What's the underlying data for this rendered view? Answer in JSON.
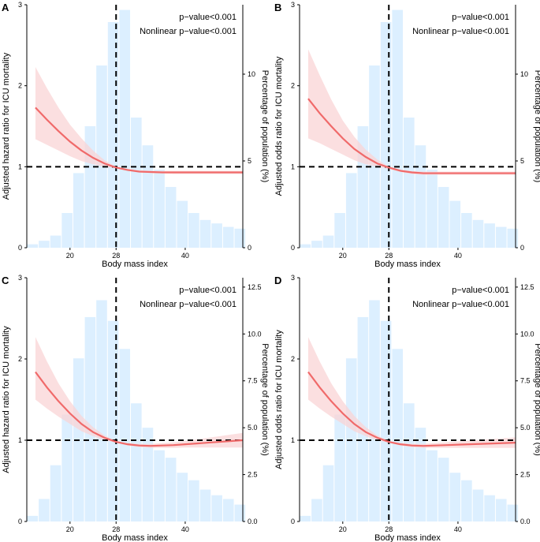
{
  "chart_data": [
    {
      "label": "A",
      "type": "line+histogram",
      "xlabel": "Body mass index",
      "ylabel": "Adjusted hazard ratio for ICU mortality",
      "y2label": "Percentage of population (%)",
      "xticks": [
        "20",
        "28",
        "40"
      ],
      "xtick_values": [
        20,
        28,
        40
      ],
      "xlim": [
        12.5,
        50
      ],
      "yticks": [
        "0",
        "1",
        "2",
        "3"
      ],
      "ylim": [
        0,
        3
      ],
      "y2ticks": [
        "0",
        "5",
        "10"
      ],
      "y2lim": [
        0,
        14
      ],
      "ref_x": 28,
      "ref_y": 1,
      "annotations": [
        "p−value<0.001",
        "Nonlinear p−value<0.001"
      ],
      "histogram": {
        "bin_centers": [
          13.5,
          15.5,
          17.5,
          19.5,
          21.5,
          23.5,
          25.5,
          27.5,
          29.5,
          31.5,
          33.5,
          35.5,
          37.5,
          39.5,
          41.5,
          43.5,
          45.5,
          47.5,
          49.5
        ],
        "bin_width": 2,
        "percent": [
          0.2,
          0.4,
          0.7,
          2.0,
          4.3,
          7.0,
          10.5,
          13.0,
          13.7,
          7.5,
          5.9,
          4.5,
          3.5,
          2.7,
          2.0,
          1.6,
          1.4,
          1.2,
          1.1
        ]
      },
      "curve": {
        "x": [
          14,
          16,
          18,
          20,
          22,
          24,
          26,
          28,
          30,
          32,
          34,
          36,
          38,
          40,
          42,
          44,
          46,
          48,
          50
        ],
        "y": [
          1.73,
          1.58,
          1.44,
          1.31,
          1.2,
          1.11,
          1.04,
          0.99,
          0.96,
          0.94,
          0.935,
          0.93,
          0.93,
          0.93,
          0.93,
          0.93,
          0.93,
          0.93,
          0.93
        ],
        "lower": [
          1.34,
          1.27,
          1.2,
          1.13,
          1.07,
          1.03,
          1.0,
          0.98,
          0.95,
          0.93,
          0.92,
          0.915,
          0.91,
          0.91,
          0.91,
          0.91,
          0.91,
          0.91,
          0.91
        ],
        "upper": [
          2.23,
          1.97,
          1.73,
          1.52,
          1.35,
          1.2,
          1.08,
          1.0,
          0.975,
          0.955,
          0.95,
          0.95,
          0.95,
          0.95,
          0.95,
          0.95,
          0.95,
          0.95,
          0.95
        ]
      }
    },
    {
      "label": "B",
      "type": "line+histogram",
      "xlabel": "Body mass index",
      "ylabel": "Adjusted odds ratio for ICU mortality",
      "y2label": "Percentage of population (%)",
      "xticks": [
        "20",
        "28",
        "40"
      ],
      "xtick_values": [
        20,
        28,
        40
      ],
      "xlim": [
        12.5,
        50
      ],
      "yticks": [
        "0",
        "1",
        "2",
        "3"
      ],
      "ylim": [
        0,
        3
      ],
      "y2ticks": [
        "0",
        "5",
        "10"
      ],
      "y2lim": [
        0,
        14
      ],
      "ref_x": 28,
      "ref_y": 1,
      "annotations": [
        "p−value<0.001",
        "Nonlinear p−value<0.001"
      ],
      "histogram": {
        "bin_centers": [
          13.5,
          15.5,
          17.5,
          19.5,
          21.5,
          23.5,
          25.5,
          27.5,
          29.5,
          31.5,
          33.5,
          35.5,
          37.5,
          39.5,
          41.5,
          43.5,
          45.5,
          47.5,
          49.5
        ],
        "bin_width": 2,
        "percent": [
          0.2,
          0.4,
          0.7,
          2.0,
          4.3,
          7.0,
          10.5,
          13.0,
          13.7,
          7.5,
          5.9,
          4.5,
          3.5,
          2.7,
          2.0,
          1.6,
          1.4,
          1.2,
          1.1
        ]
      },
      "curve": {
        "x": [
          14,
          16,
          18,
          20,
          22,
          24,
          26,
          28,
          30,
          32,
          34,
          36,
          38,
          40,
          42,
          44,
          46,
          48,
          50
        ],
        "y": [
          1.84,
          1.66,
          1.5,
          1.35,
          1.22,
          1.12,
          1.04,
          0.99,
          0.95,
          0.93,
          0.92,
          0.92,
          0.92,
          0.92,
          0.92,
          0.92,
          0.92,
          0.92,
          0.92
        ],
        "lower": [
          1.35,
          1.29,
          1.22,
          1.15,
          1.08,
          1.03,
          1.0,
          0.97,
          0.935,
          0.91,
          0.9,
          0.9,
          0.9,
          0.9,
          0.9,
          0.9,
          0.9,
          0.9,
          0.9
        ],
        "upper": [
          2.45,
          2.13,
          1.83,
          1.57,
          1.37,
          1.21,
          1.09,
          1.0,
          0.965,
          0.945,
          0.94,
          0.94,
          0.94,
          0.94,
          0.94,
          0.94,
          0.94,
          0.94,
          0.94
        ]
      }
    },
    {
      "label": "C",
      "type": "line+histogram",
      "xlabel": "Body mass index",
      "ylabel": "Adjusted hazard ratio for ICU mortality",
      "y2label": "Percentage of population (%)",
      "xticks": [
        "20",
        "28",
        "40"
      ],
      "xtick_values": [
        20,
        28,
        40
      ],
      "xlim": [
        12.5,
        50
      ],
      "yticks": [
        "0",
        "1",
        "2",
        "3"
      ],
      "ylim": [
        0,
        3
      ],
      "y2ticks": [
        "0.0",
        "2.5",
        "5.0",
        "7.5",
        "10.0",
        "12.5"
      ],
      "y2lim": [
        0,
        13
      ],
      "ref_x": 28,
      "ref_y": 1,
      "annotations": [
        "p−value<0.001",
        "Nonlinear p−value<0.001"
      ],
      "histogram": {
        "bin_centers": [
          13.5,
          15.5,
          17.5,
          19.5,
          21.5,
          23.5,
          25.5,
          27.5,
          29.5,
          31.5,
          33.5,
          35.5,
          37.5,
          39.5,
          41.5,
          43.5,
          45.5,
          47.5,
          49.5
        ],
        "bin_width": 2,
        "percent": [
          0.3,
          1.2,
          3.0,
          5.7,
          8.7,
          10.9,
          11.8,
          10.7,
          9.2,
          6.3,
          5.0,
          3.8,
          3.4,
          2.6,
          2.2,
          1.7,
          1.4,
          1.2,
          0.9
        ]
      },
      "curve": {
        "x": [
          14,
          16,
          18,
          20,
          22,
          24,
          26,
          28,
          30,
          32,
          34,
          36,
          38,
          40,
          42,
          44,
          46,
          48,
          50
        ],
        "y": [
          1.84,
          1.65,
          1.48,
          1.33,
          1.2,
          1.1,
          1.03,
          0.98,
          0.95,
          0.935,
          0.93,
          0.935,
          0.94,
          0.95,
          0.96,
          0.97,
          0.98,
          0.99,
          1.0
        ],
        "lower": [
          1.5,
          1.39,
          1.29,
          1.2,
          1.11,
          1.05,
          1.0,
          0.97,
          0.935,
          0.915,
          0.905,
          0.905,
          0.905,
          0.91,
          0.91,
          0.91,
          0.91,
          0.91,
          0.91
        ],
        "upper": [
          2.27,
          1.97,
          1.7,
          1.48,
          1.3,
          1.16,
          1.06,
          0.99,
          0.965,
          0.955,
          0.955,
          0.965,
          0.975,
          0.99,
          1.01,
          1.03,
          1.05,
          1.07,
          1.09
        ]
      }
    },
    {
      "label": "D",
      "type": "line+histogram",
      "xlabel": "Body mass index",
      "ylabel": "Adjusted odds ratio for ICU mortality",
      "y2label": "Percentage of population (%)",
      "xticks": [
        "20",
        "28",
        "40"
      ],
      "xtick_values": [
        20,
        28,
        40
      ],
      "xlim": [
        12.5,
        50
      ],
      "yticks": [
        "0",
        "1",
        "2",
        "3"
      ],
      "ylim": [
        0,
        3
      ],
      "y2ticks": [
        "0.0",
        "2.5",
        "5.0",
        "7.5",
        "10.0",
        "12.5"
      ],
      "y2lim": [
        0,
        13
      ],
      "ref_x": 28,
      "ref_y": 1,
      "annotations": [
        "p−value<0.001",
        "Nonlinear p−value<0.001"
      ],
      "histogram": {
        "bin_centers": [
          13.5,
          15.5,
          17.5,
          19.5,
          21.5,
          23.5,
          25.5,
          27.5,
          29.5,
          31.5,
          33.5,
          35.5,
          37.5,
          39.5,
          41.5,
          43.5,
          45.5,
          47.5,
          49.5
        ],
        "bin_width": 2,
        "percent": [
          0.3,
          1.2,
          3.0,
          5.7,
          8.7,
          10.9,
          11.8,
          10.7,
          9.2,
          6.3,
          5.0,
          3.8,
          3.4,
          2.6,
          2.2,
          1.7,
          1.4,
          1.2,
          0.9
        ]
      },
      "curve": {
        "x": [
          14,
          16,
          18,
          20,
          22,
          24,
          26,
          28,
          30,
          32,
          34,
          36,
          38,
          40,
          42,
          44,
          46,
          48,
          50
        ],
        "y": [
          1.84,
          1.65,
          1.48,
          1.33,
          1.2,
          1.1,
          1.03,
          0.98,
          0.95,
          0.935,
          0.93,
          0.935,
          0.94,
          0.945,
          0.95,
          0.955,
          0.96,
          0.965,
          0.97
        ],
        "lower": [
          1.5,
          1.39,
          1.29,
          1.2,
          1.11,
          1.05,
          1.0,
          0.97,
          0.935,
          0.915,
          0.905,
          0.905,
          0.905,
          0.905,
          0.905,
          0.905,
          0.905,
          0.905,
          0.905
        ],
        "upper": [
          2.27,
          1.97,
          1.7,
          1.48,
          1.3,
          1.16,
          1.06,
          0.99,
          0.965,
          0.955,
          0.955,
          0.965,
          0.975,
          0.985,
          0.995,
          1.005,
          1.015,
          1.025,
          1.035
        ]
      }
    }
  ],
  "colors": {
    "bar": "#dcefff",
    "curve": "#f06a6a",
    "band": "#fad4d6",
    "refline": "#000000"
  }
}
